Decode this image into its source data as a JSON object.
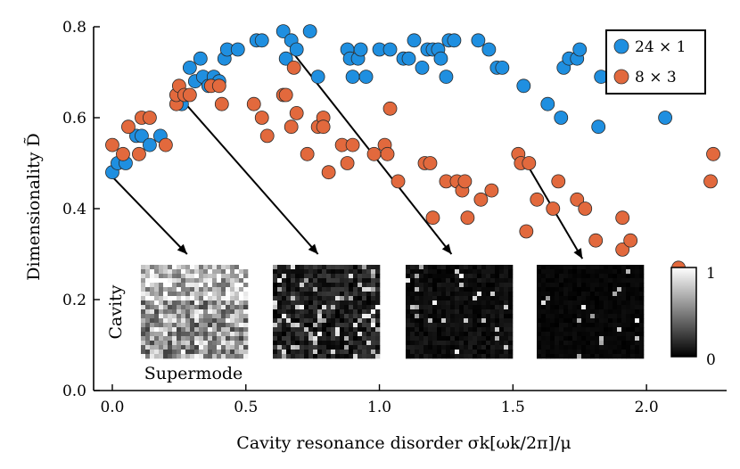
{
  "chart_data": {
    "type": "scatter",
    "xlabel": "Cavity resonance disorder σk[ωk/2π]/μ",
    "ylabel": "Dimensionality D̃",
    "xlim": [
      -0.07,
      2.3
    ],
    "ylim": [
      0.0,
      0.8
    ],
    "xticks": [
      {
        "value": 0.0,
        "label": "0.0"
      },
      {
        "value": 0.5,
        "label": "0.5"
      },
      {
        "value": 1.0,
        "label": "1.0"
      },
      {
        "value": 1.5,
        "label": "1.5"
      },
      {
        "value": 2.0,
        "label": "2.0"
      }
    ],
    "yticks": [
      {
        "value": 0.0,
        "label": "0.0"
      },
      {
        "value": 0.2,
        "label": "0.2"
      },
      {
        "value": 0.4,
        "label": "0.4"
      },
      {
        "value": 0.6,
        "label": "0.6"
      },
      {
        "value": 0.8,
        "label": "0.8"
      }
    ],
    "legend_position": "top-right",
    "series": [
      {
        "name": "24 × 1",
        "color": "#1f8fe0",
        "points": [
          [
            0.0,
            0.48
          ],
          [
            0.02,
            0.5
          ],
          [
            0.05,
            0.5
          ],
          [
            0.09,
            0.56
          ],
          [
            0.11,
            0.56
          ],
          [
            0.14,
            0.54
          ],
          [
            0.18,
            0.56
          ],
          [
            0.26,
            0.63
          ],
          [
            0.29,
            0.71
          ],
          [
            0.31,
            0.68
          ],
          [
            0.33,
            0.73
          ],
          [
            0.34,
            0.69
          ],
          [
            0.36,
            0.67
          ],
          [
            0.38,
            0.69
          ],
          [
            0.4,
            0.68
          ],
          [
            0.42,
            0.73
          ],
          [
            0.43,
            0.75
          ],
          [
            0.47,
            0.75
          ],
          [
            0.54,
            0.77
          ],
          [
            0.56,
            0.77
          ],
          [
            0.64,
            0.79
          ],
          [
            0.65,
            0.73
          ],
          [
            0.67,
            0.77
          ],
          [
            0.69,
            0.75
          ],
          [
            0.74,
            0.79
          ],
          [
            0.77,
            0.69
          ],
          [
            0.88,
            0.75
          ],
          [
            0.89,
            0.73
          ],
          [
            0.9,
            0.69
          ],
          [
            0.92,
            0.73
          ],
          [
            0.93,
            0.75
          ],
          [
            0.95,
            0.69
          ],
          [
            1.0,
            0.75
          ],
          [
            1.04,
            0.75
          ],
          [
            1.09,
            0.73
          ],
          [
            1.11,
            0.73
          ],
          [
            1.13,
            0.77
          ],
          [
            1.16,
            0.71
          ],
          [
            1.18,
            0.75
          ],
          [
            1.2,
            0.75
          ],
          [
            1.22,
            0.75
          ],
          [
            1.23,
            0.73
          ],
          [
            1.25,
            0.69
          ],
          [
            1.26,
            0.77
          ],
          [
            1.28,
            0.77
          ],
          [
            1.37,
            0.77
          ],
          [
            1.41,
            0.75
          ],
          [
            1.44,
            0.71
          ],
          [
            1.46,
            0.71
          ],
          [
            1.54,
            0.67
          ],
          [
            1.63,
            0.63
          ],
          [
            1.68,
            0.6
          ],
          [
            1.69,
            0.71
          ],
          [
            1.71,
            0.73
          ],
          [
            1.74,
            0.73
          ],
          [
            1.75,
            0.75
          ],
          [
            1.82,
            0.58
          ],
          [
            1.83,
            0.69
          ],
          [
            2.07,
            0.6
          ]
        ]
      },
      {
        "name": "8 × 3",
        "color": "#e2693d",
        "points": [
          [
            0.0,
            0.54
          ],
          [
            0.04,
            0.52
          ],
          [
            0.06,
            0.58
          ],
          [
            0.1,
            0.52
          ],
          [
            0.11,
            0.6
          ],
          [
            0.14,
            0.6
          ],
          [
            0.2,
            0.54
          ],
          [
            0.24,
            0.63
          ],
          [
            0.24,
            0.65
          ],
          [
            0.25,
            0.67
          ],
          [
            0.27,
            0.65
          ],
          [
            0.29,
            0.65
          ],
          [
            0.37,
            0.67
          ],
          [
            0.4,
            0.67
          ],
          [
            0.41,
            0.63
          ],
          [
            0.53,
            0.63
          ],
          [
            0.56,
            0.6
          ],
          [
            0.58,
            0.56
          ],
          [
            0.64,
            0.65
          ],
          [
            0.65,
            0.65
          ],
          [
            0.67,
            0.58
          ],
          [
            0.68,
            0.71
          ],
          [
            0.69,
            0.61
          ],
          [
            0.73,
            0.52
          ],
          [
            0.77,
            0.58
          ],
          [
            0.79,
            0.6
          ],
          [
            0.79,
            0.58
          ],
          [
            0.81,
            0.48
          ],
          [
            0.86,
            0.54
          ],
          [
            0.88,
            0.5
          ],
          [
            0.9,
            0.54
          ],
          [
            0.98,
            0.52
          ],
          [
            1.02,
            0.54
          ],
          [
            1.03,
            0.52
          ],
          [
            1.04,
            0.62
          ],
          [
            1.07,
            0.46
          ],
          [
            1.17,
            0.5
          ],
          [
            1.19,
            0.5
          ],
          [
            1.2,
            0.38
          ],
          [
            1.25,
            0.46
          ],
          [
            1.29,
            0.46
          ],
          [
            1.31,
            0.44
          ],
          [
            1.32,
            0.46
          ],
          [
            1.33,
            0.38
          ],
          [
            1.38,
            0.42
          ],
          [
            1.42,
            0.44
          ],
          [
            1.52,
            0.52
          ],
          [
            1.53,
            0.5
          ],
          [
            1.55,
            0.35
          ],
          [
            1.56,
            0.5
          ],
          [
            1.59,
            0.42
          ],
          [
            1.65,
            0.4
          ],
          [
            1.67,
            0.46
          ],
          [
            1.74,
            0.42
          ],
          [
            1.77,
            0.4
          ],
          [
            1.81,
            0.33
          ],
          [
            1.91,
            0.38
          ],
          [
            1.91,
            0.31
          ],
          [
            1.94,
            0.33
          ],
          [
            2.12,
            0.27
          ],
          [
            2.24,
            0.46
          ],
          [
            2.25,
            0.52
          ]
        ]
      }
    ],
    "annotations": [
      {
        "type": "arrow",
        "from": [
          0.0,
          0.47
        ],
        "to": [
          0.28,
          0.3
        ]
      },
      {
        "type": "arrow",
        "from": [
          0.26,
          0.64
        ],
        "to": [
          0.77,
          0.3
        ]
      },
      {
        "type": "arrow",
        "from": [
          0.68,
          0.74
        ],
        "to": [
          1.27,
          0.3
        ]
      },
      {
        "type": "arrow",
        "from": [
          1.55,
          0.5
        ],
        "to": [
          1.76,
          0.29
        ]
      }
    ],
    "inset_labels": {
      "cavity": "Cavity",
      "supermode": "Supermode"
    },
    "colorbar": {
      "min_label": "0",
      "max_label": "1"
    }
  },
  "legend": {
    "items": [
      {
        "label": "24 × 1",
        "color": "#1f8fe0"
      },
      {
        "label": "8 × 3",
        "color": "#e2693d"
      }
    ]
  }
}
